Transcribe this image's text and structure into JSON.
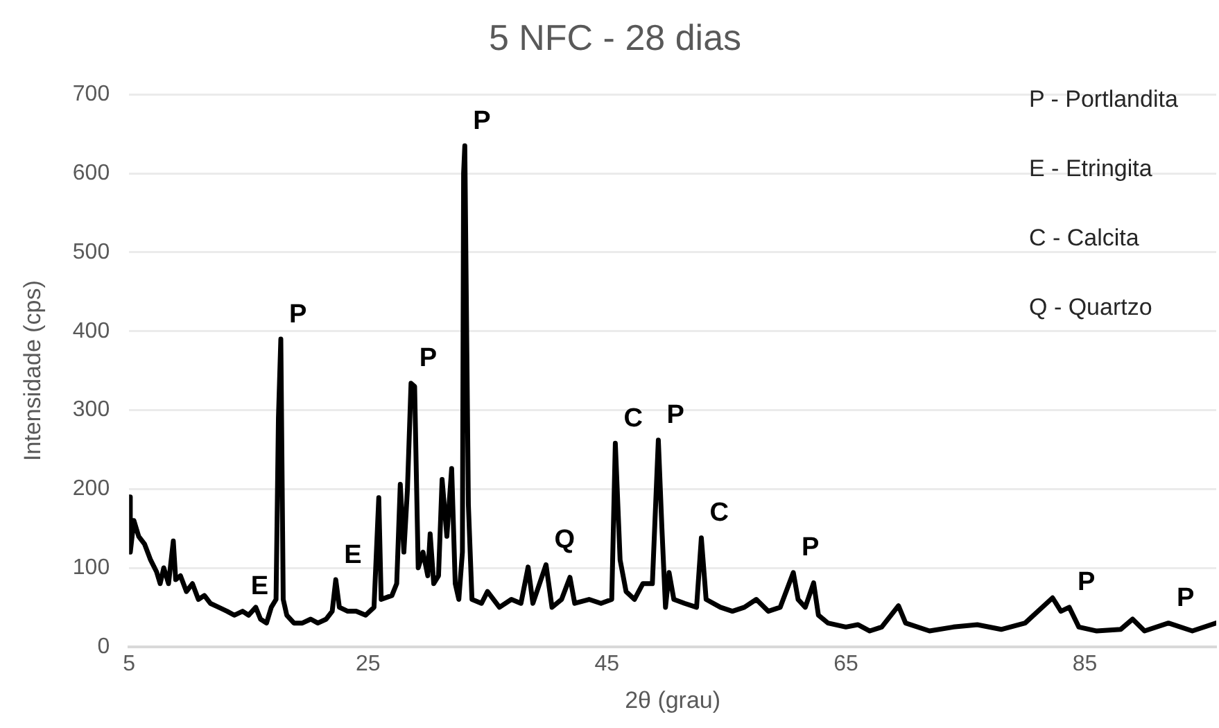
{
  "chart_data": {
    "type": "line",
    "title": "5 NFC - 28 dias",
    "xlabel": "2θ (grau)",
    "ylabel": "Intensidade (cps)",
    "x": [
      5.0,
      5.1,
      5.4,
      5.8,
      6.3,
      6.8,
      7.3,
      7.6,
      7.9,
      8.3,
      8.7,
      8.9,
      9.3,
      9.8,
      10.3,
      10.8,
      11.3,
      11.8,
      12.5,
      13.2,
      13.8,
      14.5,
      15.0,
      15.6,
      16.0,
      16.5,
      16.9,
      17.3,
      17.5,
      17.7,
      17.9,
      18.2,
      18.8,
      19.5,
      20.2,
      20.8,
      21.5,
      22.0,
      22.3,
      22.6,
      23.3,
      24.0,
      24.8,
      25.5,
      25.9,
      26.1,
      27.0,
      27.4,
      27.7,
      28.0,
      28.3,
      28.6,
      28.9,
      29.2,
      29.6,
      30.0,
      30.2,
      30.5,
      30.9,
      31.2,
      31.6,
      32.0,
      32.3,
      32.6,
      32.9,
      33.0,
      33.1,
      33.4,
      33.7,
      34.5,
      35.0,
      36.0,
      37.0,
      37.8,
      38.4,
      38.8,
      39.9,
      40.4,
      41.2,
      41.9,
      42.3,
      43.5,
      44.5,
      45.4,
      45.7,
      46.1,
      46.6,
      47.3,
      48.0,
      48.8,
      49.3,
      49.6,
      49.9,
      50.2,
      50.6,
      51.5,
      52.5,
      52.9,
      53.3,
      54.5,
      55.5,
      56.5,
      57.5,
      58.5,
      59.5,
      60.6,
      61.0,
      61.6,
      62.3,
      62.7,
      63.5,
      65.0,
      66.0,
      67.0,
      68.0,
      69.4,
      70.0,
      72.0,
      74.0,
      76.0,
      78.0,
      80.0,
      82.3,
      83.0,
      83.7,
      84.5,
      86.0,
      88.0,
      89.0,
      90.0,
      92.0,
      94.0,
      96.0
    ],
    "values": [
      190,
      120,
      160,
      140,
      130,
      110,
      95,
      80,
      100,
      80,
      134,
      85,
      90,
      70,
      80,
      60,
      65,
      55,
      50,
      45,
      40,
      45,
      40,
      50,
      35,
      30,
      50,
      60,
      290,
      390,
      60,
      40,
      30,
      30,
      35,
      30,
      35,
      45,
      85,
      50,
      45,
      45,
      40,
      50,
      189,
      60,
      65,
      80,
      206,
      120,
      200,
      334,
      330,
      100,
      120,
      90,
      143,
      80,
      90,
      212,
      140,
      226,
      80,
      60,
      120,
      600,
      635,
      180,
      60,
      55,
      70,
      50,
      60,
      55,
      101,
      55,
      104,
      50,
      60,
      88,
      55,
      60,
      55,
      60,
      258,
      110,
      70,
      60,
      80,
      80,
      262,
      150,
      50,
      94,
      60,
      55,
      50,
      138,
      60,
      50,
      45,
      50,
      60,
      45,
      50,
      94,
      60,
      50,
      81,
      40,
      30,
      25,
      28,
      20,
      25,
      52,
      30,
      20,
      25,
      28,
      22,
      30,
      62,
      45,
      50,
      25,
      20,
      22,
      35,
      20,
      30,
      20,
      30
    ],
    "color": "#000000",
    "xlim": [
      5,
      96
    ],
    "xticks": [
      5,
      25,
      45,
      65,
      85
    ],
    "ylim": [
      0,
      700
    ],
    "yticks": [
      0,
      100,
      200,
      300,
      400,
      500,
      600,
      700
    ],
    "grid": "y",
    "legend": false,
    "marker": "none",
    "annotations": [
      {
        "text": "E",
        "x": 14.5,
        "y": 45
      },
      {
        "text": "E",
        "x": 22.3,
        "y": 85
      },
      {
        "text": "P",
        "x": 17.7,
        "y": 390
      },
      {
        "text": "P",
        "x": 28.6,
        "y": 334
      },
      {
        "text": "P",
        "x": 33.1,
        "y": 635
      },
      {
        "text": "Q",
        "x": 39.9,
        "y": 104
      },
      {
        "text": "C",
        "x": 45.7,
        "y": 258
      },
      {
        "text": "P",
        "x": 49.3,
        "y": 262
      },
      {
        "text": "C",
        "x": 52.9,
        "y": 138
      },
      {
        "text": "P",
        "x": 60.6,
        "y": 94
      },
      {
        "text": "P",
        "x": 83.7,
        "y": 50
      },
      {
        "text": "P",
        "x": 92.0,
        "y": 30
      },
      "P - Portlandita",
      "E - Etringita",
      "C - Calcita",
      "Q - Quartzo"
    ]
  }
}
